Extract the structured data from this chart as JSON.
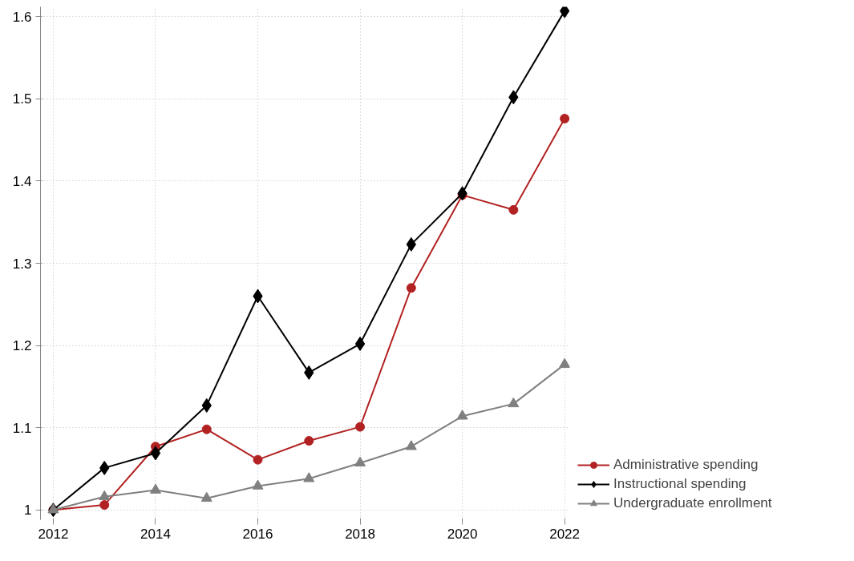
{
  "chart_data": {
    "type": "line",
    "x": [
      2012,
      2013,
      2014,
      2015,
      2016,
      2017,
      2018,
      2019,
      2020,
      2021,
      2022
    ],
    "series": [
      {
        "name": "Administrative spending",
        "color": "#b22222",
        "marker": "circle",
        "values": [
          1.0,
          1.006,
          1.077,
          1.098,
          1.061,
          1.084,
          1.101,
          1.27,
          1.383,
          1.365,
          1.476
        ]
      },
      {
        "name": "Instructional spending",
        "color": "#000000",
        "marker": "diamond",
        "values": [
          1.0,
          1.051,
          1.069,
          1.127,
          1.26,
          1.167,
          1.202,
          1.323,
          1.385,
          1.502,
          1.607
        ]
      },
      {
        "name": "Undergraduate enrollment",
        "color": "#808080",
        "marker": "triangle",
        "values": [
          1.0,
          1.016,
          1.024,
          1.014,
          1.029,
          1.038,
          1.057,
          1.077,
          1.114,
          1.129,
          1.177
        ]
      }
    ],
    "xlim": [
      2011.75,
      2022.1
    ],
    "xticks": [
      2012,
      2014,
      2016,
      2018,
      2020,
      2022
    ],
    "ylim": [
      0.988,
      1.612
    ],
    "yticks": [
      1,
      1.1,
      1.2,
      1.3,
      1.4,
      1.5,
      1.6
    ],
    "grid": true,
    "legend": "bottom right",
    "line_style": "solid"
  }
}
